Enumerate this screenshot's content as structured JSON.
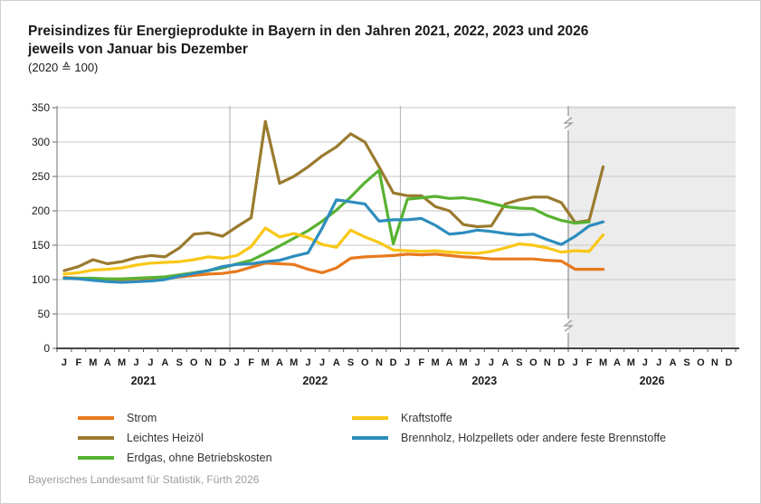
{
  "title": {
    "line1": "Preisindizes für Energieprodukte in Bayern in den Jahren 2021, 2022, 2023 und 2026",
    "line2": "jeweils von Januar bis Dezember",
    "line3": "(2020 ≙ 100)"
  },
  "footer": "Bayerisches Landesamt für Statistik, Fürth 2026",
  "chart_data": {
    "type": "line",
    "ylim": [
      0,
      350
    ],
    "yticks": [
      0,
      50,
      100,
      150,
      200,
      250,
      300,
      350
    ],
    "grid": true,
    "legend_position": "bottom",
    "month_labels": [
      "J",
      "F",
      "M",
      "A",
      "M",
      "J",
      "J",
      "A",
      "S",
      "O",
      "N",
      "D"
    ],
    "panels": [
      {
        "year": "2021",
        "highlight": false
      },
      {
        "year": "2022",
        "highlight": false
      },
      {
        "year": "2023",
        "highlight": false
      },
      {
        "year": "2026",
        "highlight": true,
        "axis_break": true
      }
    ],
    "colors": {
      "panel_highlight": "#ececec",
      "gridline": "#c6c6c6",
      "axis": "#2b2b2b",
      "divider": "#b8b8b8",
      "divider_break": "#999999"
    },
    "series": [
      {
        "name": "Strom",
        "color": "#e8791d",
        "legend_column": 1,
        "values": [
          103,
          102,
          101,
          100,
          100,
          101,
          101,
          102,
          104,
          106,
          108,
          109,
          112,
          118,
          124,
          123,
          122,
          115,
          110,
          117,
          131,
          133,
          134,
          135,
          137,
          136,
          137,
          135,
          133,
          132,
          130,
          130,
          130,
          130,
          128,
          127,
          115,
          115,
          115,
          null,
          null,
          null,
          null,
          null,
          null,
          null,
          null,
          null
        ]
      },
      {
        "name": "Leichtes Heizöl",
        "color": "#9a7a2e",
        "legend_column": 1,
        "values": [
          113,
          119,
          129,
          123,
          126,
          132,
          135,
          133,
          146,
          166,
          168,
          163,
          177,
          190,
          330,
          240,
          250,
          264,
          280,
          293,
          312,
          300,
          264,
          226,
          222,
          222,
          206,
          200,
          180,
          177,
          178,
          210,
          216,
          220,
          220,
          212,
          183,
          186,
          264,
          null,
          null,
          null,
          null,
          null,
          null,
          null,
          null,
          null
        ]
      },
      {
        "name": "Erdgas, ohne Betriebskosten",
        "color": "#58b232",
        "legend_column": 1,
        "values": [
          102,
          102,
          102,
          101,
          101,
          102,
          103,
          104,
          107,
          110,
          113,
          117,
          123,
          128,
          138,
          149,
          160,
          171,
          185,
          201,
          220,
          241,
          259,
          152,
          217,
          219,
          221,
          218,
          219,
          216,
          211,
          206,
          204,
          203,
          193,
          186,
          182,
          184,
          null,
          null,
          null,
          null,
          null,
          null,
          null,
          null,
          null,
          null
        ]
      },
      {
        "name": "Kraftstoffe",
        "color": "#f9c716",
        "legend_column": 2,
        "values": [
          108,
          110,
          114,
          115,
          117,
          121,
          124,
          125,
          126,
          129,
          133,
          131,
          135,
          148,
          175,
          162,
          167,
          161,
          151,
          147,
          172,
          162,
          154,
          143,
          142,
          141,
          142,
          140,
          139,
          138,
          141,
          146,
          152,
          150,
          146,
          140,
          142,
          141,
          165,
          null,
          null,
          null,
          null,
          null,
          null,
          null,
          null,
          null
        ]
      },
      {
        "name": "Brennholz, Holzpellets oder andere feste Brennstoffe",
        "color": "#2d8dbd",
        "legend_column": 2,
        "values": [
          102,
          101,
          99,
          97,
          96,
          97,
          98,
          100,
          105,
          109,
          113,
          119,
          122,
          123,
          126,
          128,
          134,
          139,
          175,
          216,
          213,
          210,
          185,
          187,
          187,
          189,
          179,
          166,
          168,
          172,
          170,
          167,
          165,
          166,
          158,
          151,
          163,
          178,
          184,
          null,
          null,
          null,
          null,
          null,
          null,
          null,
          null,
          null
        ]
      }
    ]
  }
}
